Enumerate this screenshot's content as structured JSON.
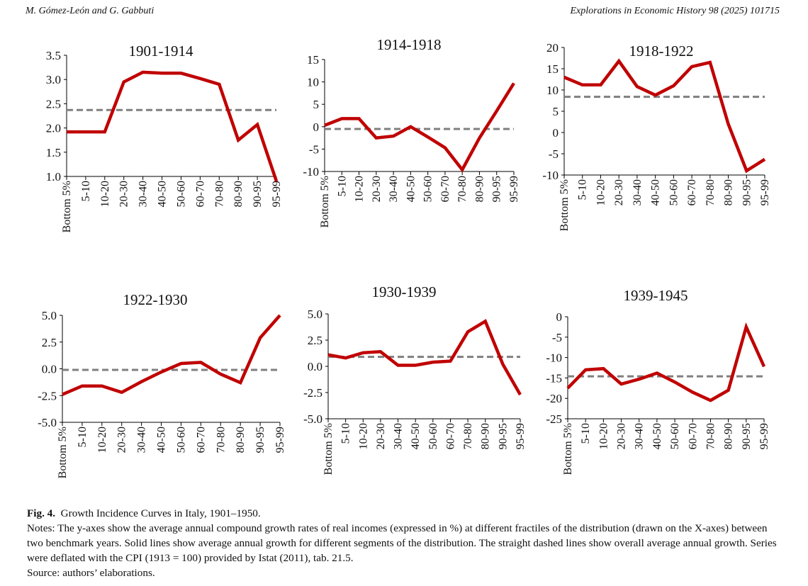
{
  "header": {
    "authors": "M. Gómez-León and G. Gabbuti",
    "journal": "Explorations in Economic History 98 (2025) 101715"
  },
  "colors": {
    "series": "#c00000",
    "average": "#7f7f7f",
    "axis": "#000000"
  },
  "caption": {
    "fig_label": "Fig. 4.",
    "fig_title": "Growth Incidence Curves in Italy, 1901–1950.",
    "notes": "Notes: The y-axes show the average annual compound growth rates of real incomes (expressed in %) at different fractiles of the distribution (drawn on the X-axes) between two benchmark years. Solid lines show average annual growth for different segments of the distribution. The straight dashed lines show overall average annual growth. Series were deflated with the CPI (1913 = 100) provided by Istat (2011), tab. 21.5.",
    "source": "Source: authors’ elaborations."
  },
  "chart_data": [
    {
      "type": "line",
      "title": "1901-1914",
      "categories": [
        "Bottom 5%",
        "5-10",
        "10-20",
        "20-30",
        "30-40",
        "40-50",
        "50-60",
        "60-70",
        "70-80",
        "80-90",
        "90-95",
        "95-99"
      ],
      "values": [
        1.92,
        1.92,
        1.92,
        2.95,
        3.15,
        3.13,
        3.13,
        3.02,
        2.9,
        1.75,
        2.07,
        0.9
      ],
      "average": 2.37,
      "ylim": [
        1.0,
        3.5
      ],
      "yticks": [
        "1.0",
        "1.5",
        "2.0",
        "2.5",
        "3.0",
        "3.5"
      ]
    },
    {
      "type": "line",
      "title": "1914-1918",
      "categories": [
        "Bottom 5%",
        "5-10",
        "10-20",
        "20-30",
        "30-40",
        "40-50",
        "50-60",
        "60-70",
        "70-80",
        "80-90",
        "90-95",
        "95-99"
      ],
      "values": [
        0.3,
        1.8,
        1.8,
        -2.5,
        -2.1,
        0.0,
        -2.3,
        -4.7,
        -9.6,
        -2.5,
        3.5,
        9.7
      ],
      "average": -0.5,
      "ylim": [
        -10,
        15
      ],
      "yticks": [
        "-10",
        "-5",
        "0",
        "5",
        "10",
        "15"
      ]
    },
    {
      "type": "line",
      "title": "1918-1922",
      "categories": [
        "Bottom 5%",
        "5-10",
        "10-20",
        "20-30",
        "30-40",
        "40-50",
        "50-60",
        "60-70",
        "70-80",
        "80-90",
        "90-95",
        "95-99"
      ],
      "values": [
        13.0,
        11.2,
        11.2,
        16.8,
        10.8,
        8.8,
        11.0,
        15.5,
        16.5,
        2.0,
        -9.0,
        -6.3
      ],
      "average": 8.4,
      "ylim": [
        -10,
        20
      ],
      "yticks": [
        "-10",
        "-5",
        "0",
        "5",
        "10",
        "15",
        "20"
      ]
    },
    {
      "type": "line",
      "title": "1922-1930",
      "categories": [
        "Bottom 5%",
        "5-10",
        "10-20",
        "20-30",
        "30-40",
        "40-50",
        "50-60",
        "60-70",
        "70-80",
        "80-90",
        "90-95",
        "95-99"
      ],
      "values": [
        -2.4,
        -1.6,
        -1.6,
        -2.2,
        -1.2,
        -0.3,
        0.5,
        0.6,
        -0.5,
        -1.3,
        2.9,
        5.0
      ],
      "average": -0.1,
      "ylim": [
        -5,
        5
      ],
      "yticks": [
        "-5.0",
        "-2.5",
        "0.0",
        "2.5",
        "5.0"
      ]
    },
    {
      "type": "line",
      "title": "1930-1939",
      "categories": [
        "Bottom 5%",
        "5-10",
        "10-20",
        "20-30",
        "30-40",
        "40-50",
        "50-60",
        "60-70",
        "70-80",
        "80-90",
        "90-95",
        "95-99"
      ],
      "values": [
        1.1,
        0.8,
        1.3,
        1.4,
        0.1,
        0.1,
        0.4,
        0.5,
        3.3,
        4.3,
        0.2,
        -2.7
      ],
      "average": 0.9,
      "ylim": [
        -5,
        5
      ],
      "yticks": [
        "-5.0",
        "-2.5",
        "0.0",
        "2.5",
        "5.0"
      ]
    },
    {
      "type": "line",
      "title": "1939-1945",
      "categories": [
        "Bottom 5%",
        "5-10",
        "10-20",
        "20-30",
        "30-40",
        "40-50",
        "50-60",
        "60-70",
        "70-80",
        "80-90",
        "90-95",
        "95-99"
      ],
      "values": [
        -17.5,
        -13.0,
        -12.7,
        -16.5,
        -15.3,
        -13.8,
        -16.0,
        -18.5,
        -20.5,
        -18.0,
        -2.5,
        -12.2
      ],
      "average": -14.6,
      "ylim": [
        -25,
        0
      ],
      "yticks": [
        "-25",
        "-20",
        "-15",
        "-10",
        "-5",
        "0"
      ]
    }
  ]
}
